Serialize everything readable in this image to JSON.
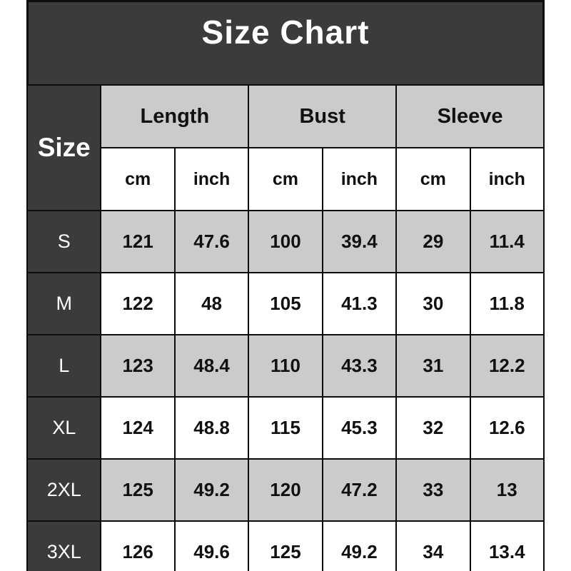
{
  "chart_data": {
    "type": "table",
    "title": "Size Chart",
    "corner_label": "Size",
    "column_groups": [
      "Length",
      "Bust",
      "Sleeve"
    ],
    "units": [
      "cm",
      "inch",
      "cm",
      "inch",
      "cm",
      "inch"
    ],
    "columns": [
      "Size",
      "Length cm",
      "Length inch",
      "Bust cm",
      "Bust inch",
      "Sleeve cm",
      "Sleeve inch"
    ],
    "rows": [
      {
        "size": "S",
        "values": [
          "121",
          "47.6",
          "100",
          "39.4",
          "29",
          "11.4"
        ]
      },
      {
        "size": "M",
        "values": [
          "122",
          "48",
          "105",
          "41.3",
          "30",
          "11.8"
        ]
      },
      {
        "size": "L",
        "values": [
          "123",
          "48.4",
          "110",
          "43.3",
          "31",
          "12.2"
        ]
      },
      {
        "size": "XL",
        "values": [
          "124",
          "48.8",
          "115",
          "45.3",
          "32",
          "12.6"
        ]
      },
      {
        "size": "2XL",
        "values": [
          "125",
          "49.2",
          "120",
          "47.2",
          "33",
          "13"
        ]
      },
      {
        "size": "3XL",
        "values": [
          "126",
          "49.6",
          "125",
          "49.2",
          "34",
          "13.4"
        ]
      }
    ]
  },
  "colors": {
    "dark_header_bg": "#3b3b3b",
    "stripe_bg": "#cbcbcb",
    "row_bg": "#ffffff",
    "border": "#0d0d0d",
    "title_text": "#ffffff",
    "cell_text": "#111111"
  }
}
